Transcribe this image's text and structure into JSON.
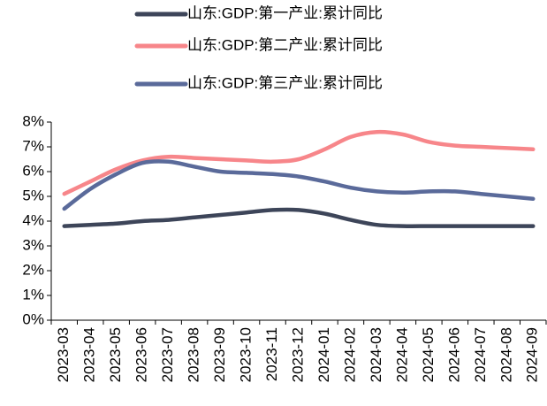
{
  "chart_data": {
    "type": "line",
    "categories": [
      "2023-03",
      "2023-04",
      "2023-05",
      "2023-06",
      "2023-07",
      "2023-08",
      "2023-09",
      "2023-10",
      "2023-11",
      "2023-12",
      "2024-01",
      "2024-02",
      "2024-03",
      "2024-04",
      "2024-05",
      "2024-06",
      "2024-07",
      "2024-08",
      "2024-09"
    ],
    "series": [
      {
        "name": "山东:GDP:第一产业:累计同比",
        "color": "#3d4559",
        "values": [
          3.8,
          3.85,
          3.9,
          4.0,
          4.05,
          4.15,
          4.25,
          4.35,
          4.45,
          4.45,
          4.3,
          4.05,
          3.85,
          3.8,
          3.8,
          3.8,
          3.8,
          3.8,
          3.8
        ]
      },
      {
        "name": "山东:GDP:第二产业:累计同比",
        "color": "#f7868a",
        "values": [
          5.1,
          5.6,
          6.1,
          6.45,
          6.6,
          6.55,
          6.5,
          6.45,
          6.4,
          6.5,
          6.9,
          7.4,
          7.6,
          7.5,
          7.2,
          7.05,
          7.0,
          6.95,
          6.9
        ]
      },
      {
        "name": "山东:GDP:第三产业:累计同比",
        "color": "#5a6a9a",
        "values": [
          4.5,
          5.3,
          5.9,
          6.35,
          6.4,
          6.2,
          6.0,
          5.95,
          5.9,
          5.8,
          5.6,
          5.35,
          5.2,
          5.15,
          5.2,
          5.2,
          5.1,
          5.0,
          4.9
        ]
      }
    ],
    "ylim": [
      0,
      8
    ],
    "yticks": [
      {
        "value": 0,
        "label": "0%"
      },
      {
        "value": 1,
        "label": "1%"
      },
      {
        "value": 2,
        "label": "2%"
      },
      {
        "value": 3,
        "label": "3%"
      },
      {
        "value": 4,
        "label": "4%"
      },
      {
        "value": 5,
        "label": "5%"
      },
      {
        "value": 6,
        "label": "6%"
      },
      {
        "value": 7,
        "label": "7%"
      },
      {
        "value": 8,
        "label": "8%"
      }
    ],
    "legend": "top"
  }
}
